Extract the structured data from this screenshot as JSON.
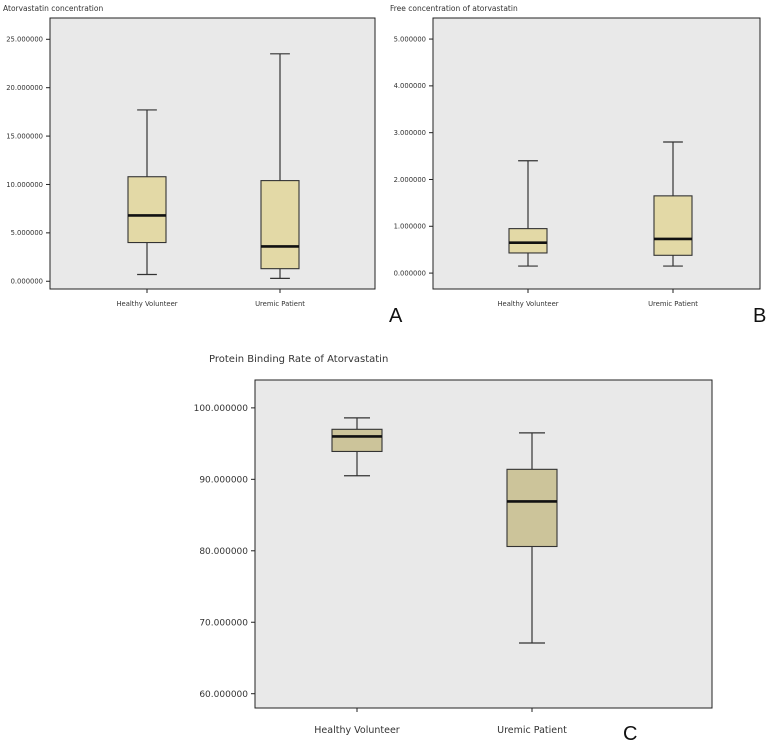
{
  "chart_data": [
    {
      "type": "box",
      "title": "Atorvastatin concentration",
      "panel_label": "A",
      "categories": [
        "Healthy Volunteer",
        "Uremic Patient"
      ],
      "ylim": [
        -0.8,
        27.2
      ],
      "yticks": [
        0,
        5,
        10,
        15,
        20,
        25
      ],
      "ytick_labels": [
        "0.000000",
        "5.000000",
        "10.000000",
        "15.000000",
        "20.000000",
        "25.000000"
      ],
      "boxes": [
        {
          "category": "Healthy Volunteer",
          "min": 0.7,
          "q1": 4.0,
          "median": 6.8,
          "q3": 10.8,
          "max": 17.7
        },
        {
          "category": "Uremic Patient",
          "min": 0.3,
          "q1": 1.3,
          "median": 3.6,
          "q3": 10.4,
          "max": 23.5
        }
      ],
      "box_color": "#e3d9a6",
      "background": "#e9e9e9",
      "grid": false
    },
    {
      "type": "box",
      "title": "Free concentration of atorvastatin",
      "panel_label": "B",
      "categories": [
        "Healthy Volunteer",
        "Uremic Patient"
      ],
      "ylim": [
        -0.34,
        5.45
      ],
      "yticks": [
        0,
        1,
        2,
        3,
        4,
        5
      ],
      "ytick_labels": [
        "0.000000",
        "1.000000",
        "2.000000",
        "3.000000",
        "4.000000",
        "5.000000"
      ],
      "boxes": [
        {
          "category": "Healthy Volunteer",
          "min": 0.15,
          "q1": 0.43,
          "median": 0.65,
          "q3": 0.95,
          "max": 2.4
        },
        {
          "category": "Uremic Patient",
          "min": 0.15,
          "q1": 0.38,
          "median": 0.73,
          "q3": 1.65,
          "max": 2.8
        }
      ],
      "box_color": "#e3d9a6",
      "background": "#e9e9e9",
      "grid": false
    },
    {
      "type": "box",
      "title": "Protein Binding Rate of  Atorvastatin",
      "panel_label": "C",
      "categories": [
        "Healthy Volunteer",
        "Uremic Patient"
      ],
      "ylim": [
        58.0,
        103.9
      ],
      "yticks": [
        60,
        70,
        80,
        90,
        100
      ],
      "ytick_labels": [
        "60.000000",
        "70.000000",
        "80.000000",
        "90.000000",
        "100.000000"
      ],
      "boxes": [
        {
          "category": "Healthy Volunteer",
          "min": 90.5,
          "q1": 93.9,
          "median": 96.0,
          "q3": 97.0,
          "max": 98.6
        },
        {
          "category": "Uremic Patient",
          "min": 67.1,
          "q1": 80.6,
          "median": 86.9,
          "q3": 91.4,
          "max": 96.5
        }
      ],
      "box_color": "#ccc49a",
      "background": "#e9e9e9",
      "grid": false
    }
  ]
}
